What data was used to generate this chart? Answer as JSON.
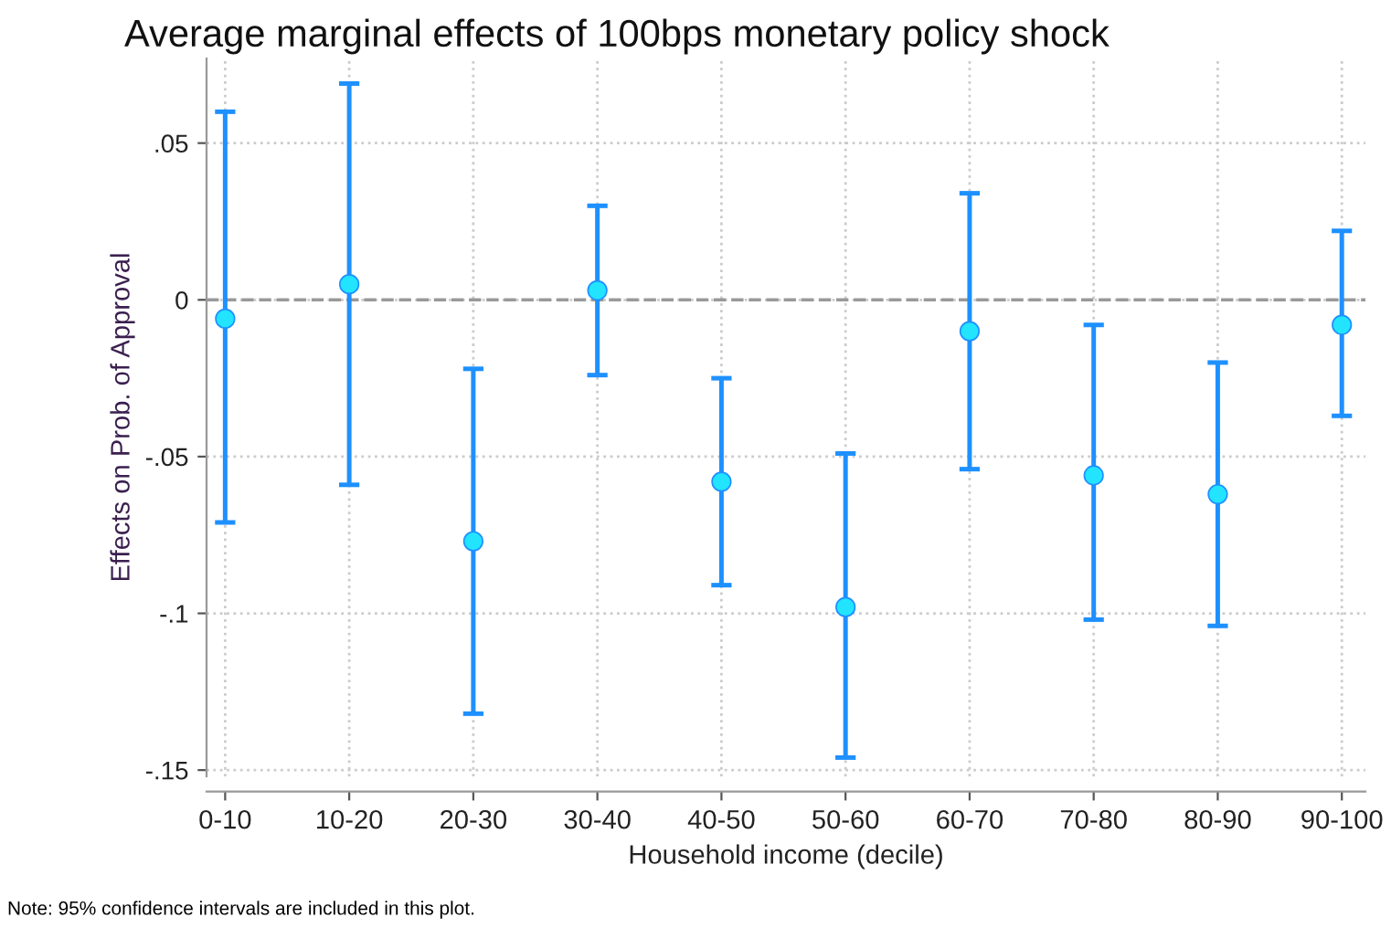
{
  "chart_data": {
    "type": "scatter",
    "title": "Average marginal effects of 100bps monetary policy shock",
    "xlabel": "Household income (decile)",
    "ylabel": "Effects on Prob. of Approval",
    "categories": [
      "0-10",
      "10-20",
      "20-30",
      "30-40",
      "40-50",
      "50-60",
      "60-70",
      "70-80",
      "80-90",
      "90-100"
    ],
    "series": [
      {
        "color": "#1e90ff",
        "values": [
          -0.006,
          0.005,
          -0.077,
          0.003,
          -0.058,
          -0.098,
          -0.01,
          -0.056,
          -0.062,
          -0.008
        ],
        "errors": [
          [
            -0.071,
            0.06
          ],
          [
            -0.059,
            0.069
          ],
          [
            -0.132,
            -0.022
          ],
          [
            -0.024,
            0.03
          ],
          [
            -0.091,
            -0.025
          ],
          [
            -0.146,
            -0.049
          ],
          [
            -0.054,
            0.034
          ],
          [
            -0.102,
            -0.008
          ],
          [
            -0.104,
            -0.02
          ],
          [
            -0.037,
            0.022
          ]
        ]
      }
    ],
    "ylim": [
      -0.152,
      0.077
    ],
    "yticks": [
      {
        "value": -0.15,
        "label": "-.15"
      },
      {
        "value": -0.1,
        "label": "-.1"
      },
      {
        "value": -0.05,
        "label": "-.05"
      },
      0,
      {
        "value": 0.05,
        "label": ".05"
      }
    ],
    "ref_lines": [
      {
        "axis": "y",
        "value": 0,
        "color": "#999999",
        "line_style": "dashed"
      }
    ],
    "grid": true,
    "marker": "circle",
    "annotations": [
      "Note: 95% confidence intervals are included in this plot."
    ]
  }
}
